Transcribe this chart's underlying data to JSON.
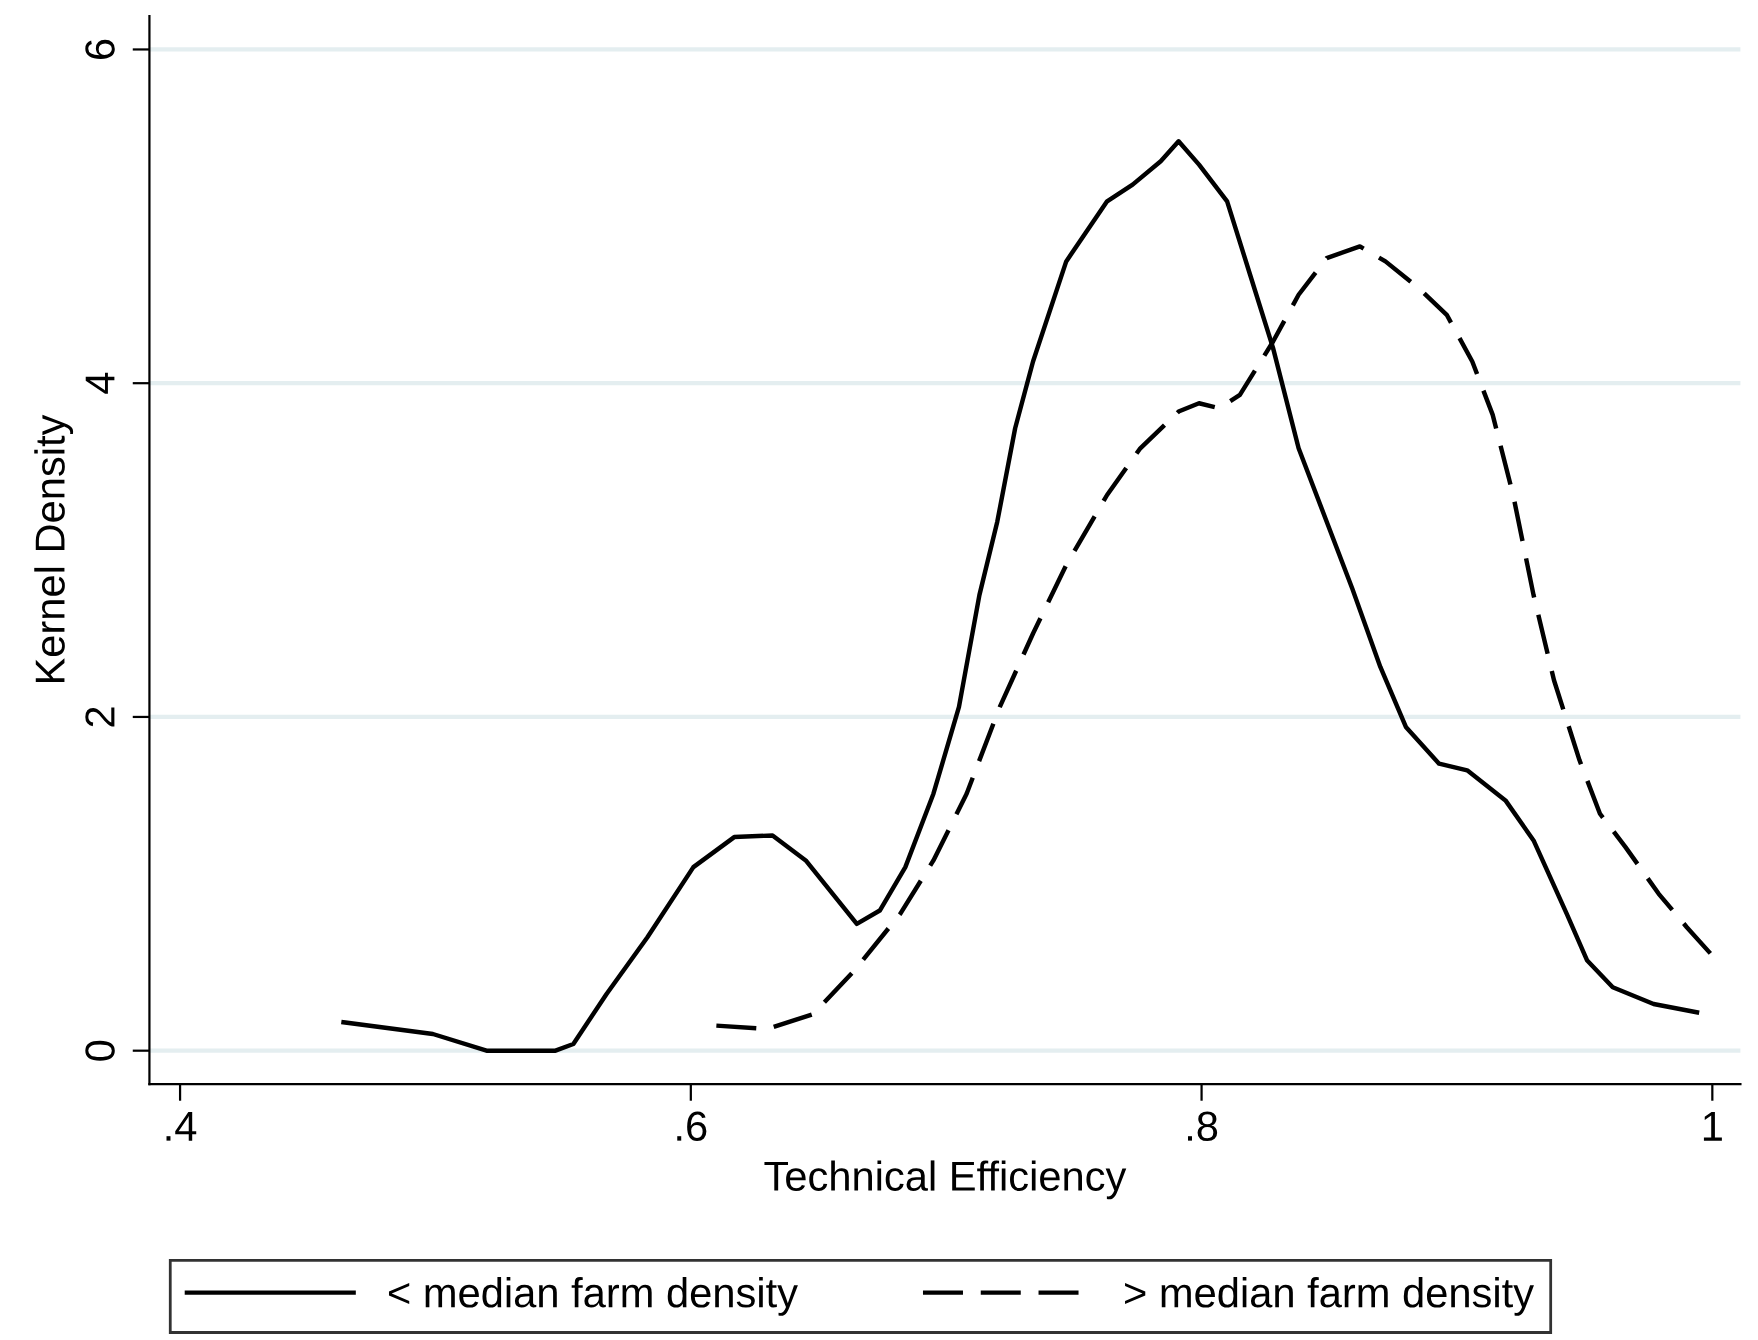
{
  "chart_data": {
    "type": "line",
    "xlabel": "Technical Efficiency",
    "ylabel": "Kernel Density",
    "xlim": [
      0.388,
      1.011
    ],
    "ylim": [
      -0.2,
      6.2
    ],
    "xticks": [
      {
        "value": 0.4,
        "label": ".4"
      },
      {
        "value": 0.6,
        "label": ".6"
      },
      {
        "value": 0.8,
        "label": ".8"
      },
      1
    ],
    "yticks": [
      0,
      2,
      4,
      6
    ],
    "grid": "y",
    "legend": "bottom",
    "marker": "none",
    "series": [
      {
        "name": "< median farm density",
        "color": "#000000",
        "line_style": "solid",
        "x": [
          0.464,
          0.499,
          0.52,
          0.547,
          0.554,
          0.567,
          0.583,
          0.601,
          0.617,
          0.632,
          0.645,
          0.665,
          0.674,
          0.684,
          0.695,
          0.705,
          0.713,
          0.72,
          0.727,
          0.734,
          0.747,
          0.763,
          0.773,
          0.784,
          0.791,
          0.799,
          0.81,
          0.819,
          0.828,
          0.838,
          0.849,
          0.859,
          0.87,
          0.88,
          0.893,
          0.904,
          0.919,
          0.93,
          0.943,
          0.951,
          0.961,
          0.977,
          0.994
        ],
        "values": [
          0.17,
          0.1,
          0.0,
          0.0,
          0.04,
          0.34,
          0.68,
          1.1,
          1.28,
          1.29,
          1.14,
          0.76,
          0.84,
          1.1,
          1.54,
          2.06,
          2.73,
          3.17,
          3.73,
          4.13,
          4.73,
          5.09,
          5.19,
          5.33,
          5.45,
          5.31,
          5.09,
          4.65,
          4.21,
          3.61,
          3.17,
          2.77,
          2.3,
          1.94,
          1.72,
          1.68,
          1.5,
          1.26,
          0.82,
          0.54,
          0.38,
          0.28,
          0.23
        ]
      },
      {
        "name": "> median farm density",
        "color": "#000000",
        "line_style": "dashed",
        "x": [
          0.61,
          0.63,
          0.648,
          0.664,
          0.682,
          0.695,
          0.708,
          0.721,
          0.734,
          0.747,
          0.763,
          0.776,
          0.791,
          0.799,
          0.807,
          0.815,
          0.828,
          0.838,
          0.849,
          0.862,
          0.872,
          0.885,
          0.896,
          0.906,
          0.914,
          0.922,
          0.93,
          0.938,
          0.948,
          0.956,
          0.966,
          0.979,
          0.99,
          1.0
        ],
        "values": [
          0.15,
          0.13,
          0.22,
          0.48,
          0.82,
          1.14,
          1.54,
          2.06,
          2.5,
          2.91,
          3.33,
          3.61,
          3.83,
          3.88,
          3.85,
          3.93,
          4.25,
          4.53,
          4.75,
          4.82,
          4.73,
          4.57,
          4.41,
          4.13,
          3.81,
          3.33,
          2.73,
          2.22,
          1.74,
          1.42,
          1.22,
          0.94,
          0.74,
          0.57
        ]
      }
    ]
  }
}
